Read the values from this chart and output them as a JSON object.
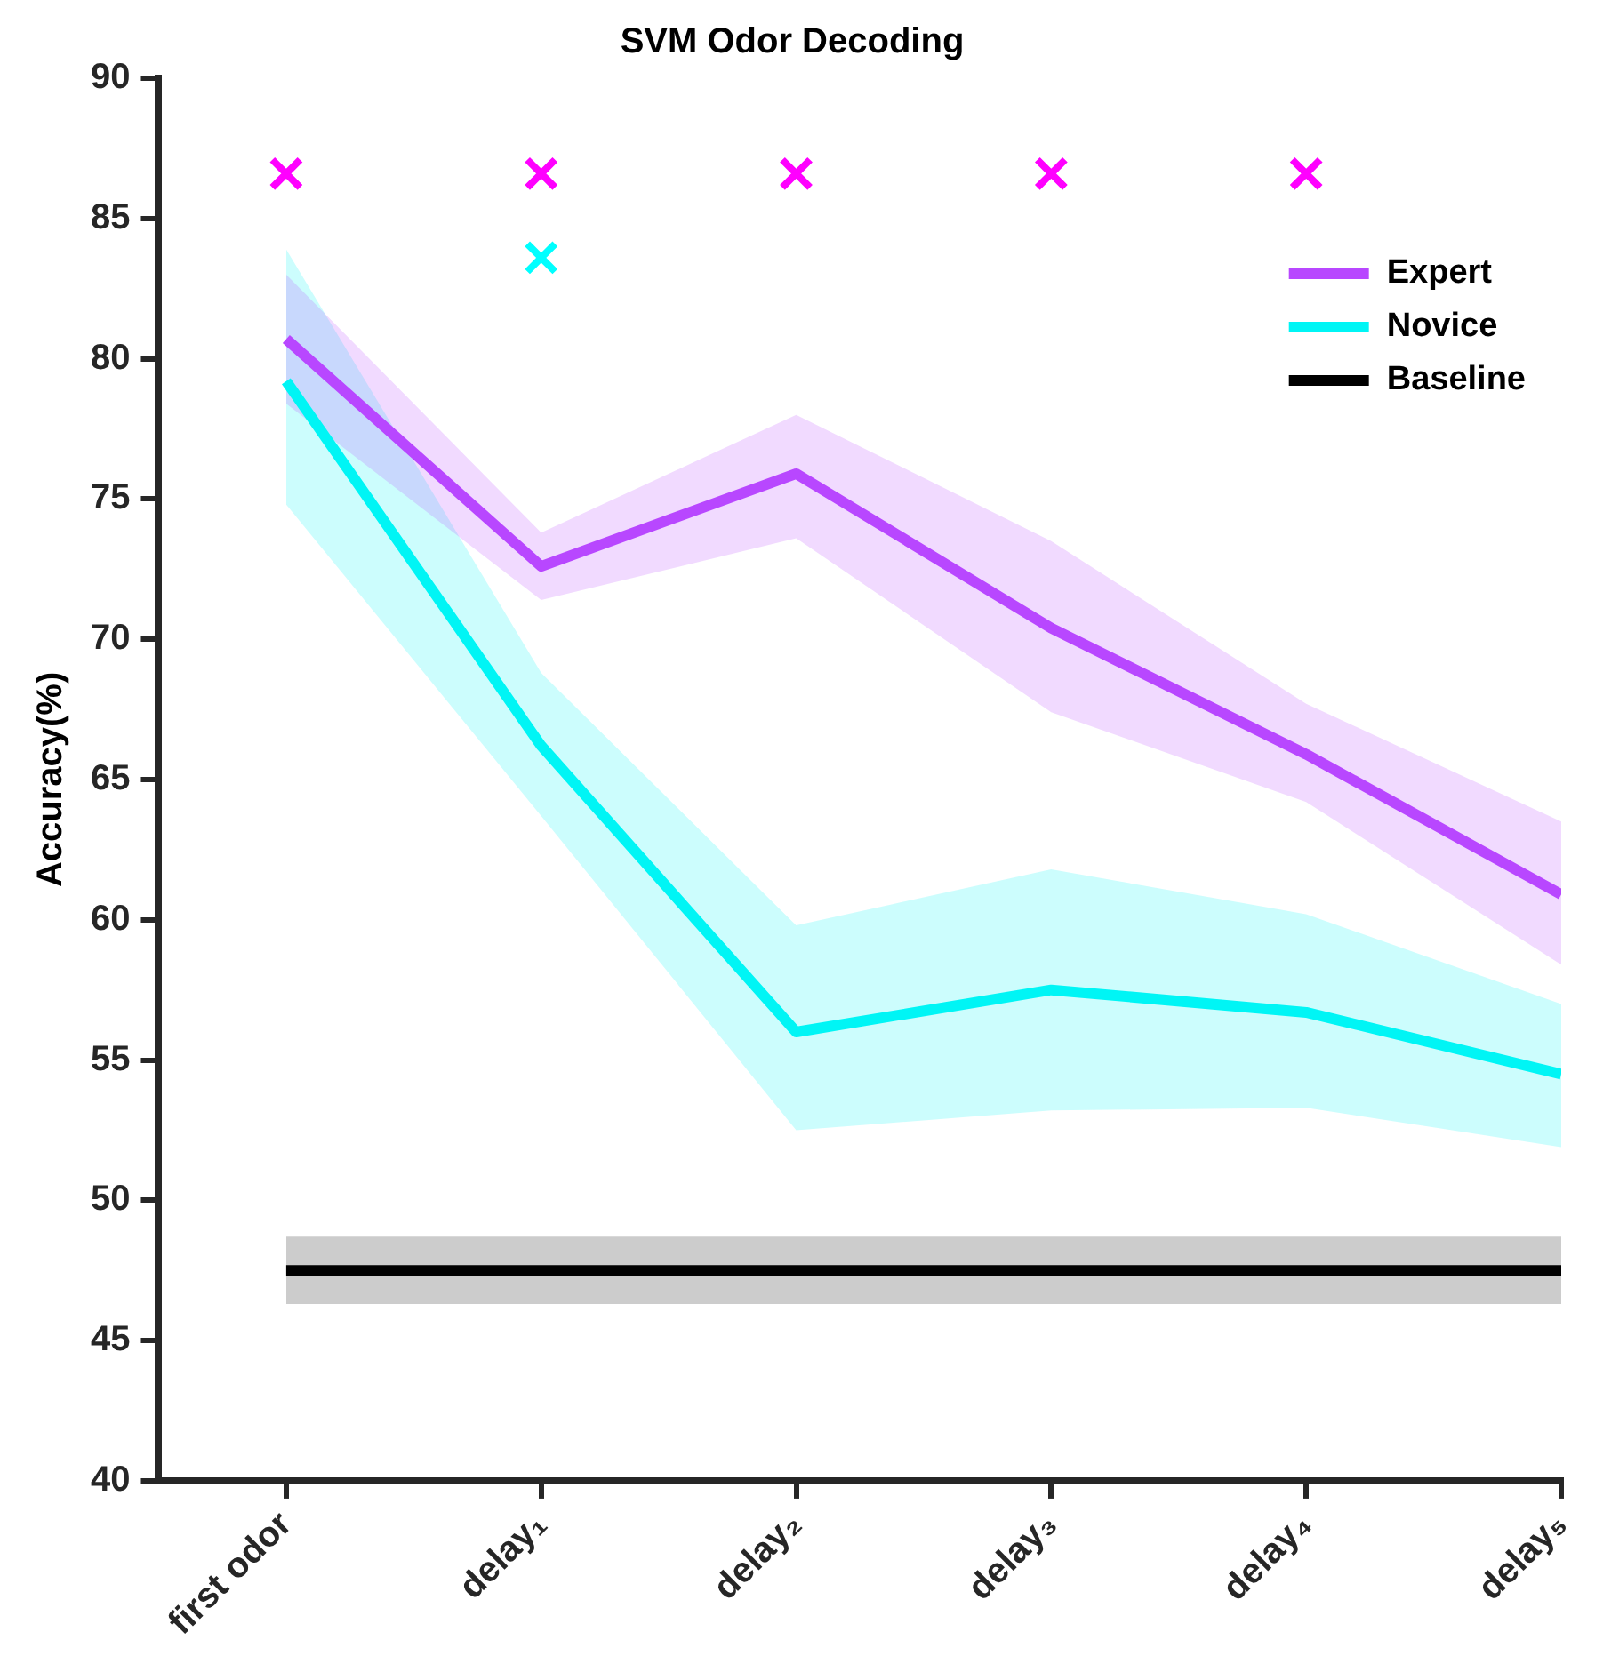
{
  "chart_data": {
    "type": "line",
    "title": "SVM Odor Decoding",
    "ylabel": "Accuracy(%)",
    "categories": [
      "first odor",
      "delay₁",
      "delay₂",
      "delay₃",
      "delay₄",
      "delay₅"
    ],
    "series": [
      {
        "name": "Expert",
        "color": "#b847ff",
        "values": [
          80.7,
          72.6,
          75.9,
          70.4,
          65.9,
          60.9
        ],
        "lower": [
          78.4,
          71.4,
          73.6,
          67.4,
          64.2,
          58.4
        ],
        "upper": [
          83.0,
          73.8,
          78.0,
          73.5,
          67.7,
          63.5
        ]
      },
      {
        "name": "Novice",
        "color": "#00f5f5",
        "values": [
          79.2,
          66.2,
          56.0,
          57.5,
          56.7,
          54.5
        ],
        "lower": [
          74.8,
          63.7,
          52.5,
          53.2,
          53.3,
          51.9
        ],
        "upper": [
          83.9,
          68.8,
          59.8,
          61.8,
          60.2,
          57.0
        ]
      },
      {
        "name": "Baseline",
        "color": "#000000",
        "values": [
          47.5,
          47.5,
          47.5,
          47.5,
          47.5,
          47.5
        ],
        "lower": [
          46.3,
          46.3,
          46.3,
          46.3,
          46.3,
          46.3
        ],
        "upper": [
          48.7,
          48.7,
          48.7,
          48.7,
          48.7,
          48.7
        ]
      },
      {
        "type": "scatter",
        "marker": "cross",
        "color": "#ff00ff",
        "values": [
          86.6,
          86.6,
          86.6,
          86.6,
          86.6,
          null
        ]
      },
      {
        "type": "scatter",
        "marker": "cross",
        "color": "#00ffff",
        "values": [
          null,
          83.6,
          null,
          null,
          null,
          null
        ]
      }
    ],
    "ylim": [
      40,
      90
    ],
    "yticks": [
      40,
      45,
      50,
      55,
      60,
      65,
      70,
      75,
      80,
      85,
      90
    ],
    "grid": false,
    "legend": "top right",
    "marker": "none",
    "line_style": "solid"
  }
}
